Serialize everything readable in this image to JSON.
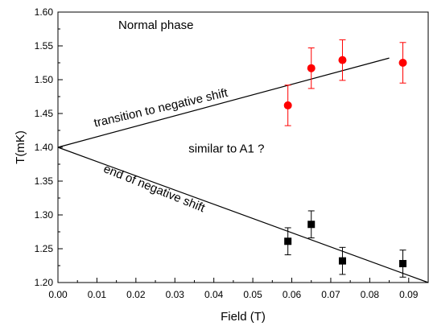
{
  "chart_data": {
    "type": "scatter",
    "xlabel": "Field (T)",
    "ylabel": "T(mK)",
    "xlim": [
      0.0,
      0.095
    ],
    "ylim": [
      1.2,
      1.6
    ],
    "x_ticks": [
      "0.00",
      "0.01",
      "0.02",
      "0.03",
      "0.04",
      "0.05",
      "0.06",
      "0.07",
      "0.08",
      "0.09"
    ],
    "y_ticks": [
      "1.20",
      "1.25",
      "1.30",
      "1.35",
      "1.40",
      "1.45",
      "1.50",
      "1.55",
      "1.60"
    ],
    "grid": false,
    "series": [
      {
        "marker": "circle",
        "color": "#ff0000",
        "points": [
          {
            "x": 0.059,
            "y": 1.462,
            "err": 0.03
          },
          {
            "x": 0.065,
            "y": 1.517,
            "err": 0.03
          },
          {
            "x": 0.073,
            "y": 1.529,
            "err": 0.03
          },
          {
            "x": 0.0885,
            "y": 1.525,
            "err": 0.03
          }
        ]
      },
      {
        "marker": "square",
        "color": "#000000",
        "points": [
          {
            "x": 0.059,
            "y": 1.261,
            "err": 0.02
          },
          {
            "x": 0.065,
            "y": 1.286,
            "err": 0.02
          },
          {
            "x": 0.073,
            "y": 1.232,
            "err": 0.02
          },
          {
            "x": 0.0885,
            "y": 1.228,
            "err": 0.02
          }
        ]
      }
    ],
    "lines": [
      {
        "x1": 0.0,
        "y1": 1.4,
        "x2": 0.085,
        "y2": 1.532,
        "color": "#000000"
      },
      {
        "x1": 0.0,
        "y1": 1.4,
        "x2": 0.095,
        "y2": 1.2,
        "color": "#000000"
      }
    ],
    "annotations": [
      {
        "text": "Normal phase",
        "x": 0.0155,
        "y": 1.575,
        "rotate": 0
      },
      {
        "text": "transition to negative shift",
        "x": 0.0095,
        "y": 1.43,
        "rotate": -13
      },
      {
        "text": "similar to A1 ?",
        "x": 0.0335,
        "y": 1.392,
        "rotate": 0
      },
      {
        "text": "end of negative shift",
        "x": 0.0115,
        "y": 1.364,
        "rotate": 22
      }
    ]
  }
}
